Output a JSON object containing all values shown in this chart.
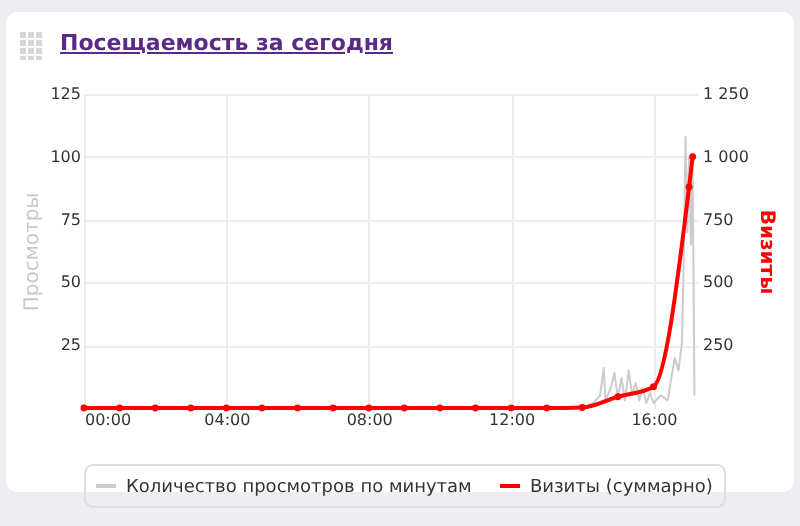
{
  "chart_data": {
    "type": "line",
    "title": "Посещаемость за сегодня",
    "ylabel": "Просмотры",
    "y2label": "Визиты",
    "xlim": [
      0,
      17.25
    ],
    "xticks": [
      {
        "value": 0,
        "label": "00:00"
      },
      {
        "value": 4,
        "label": "04:00"
      },
      {
        "value": 8,
        "label": "08:00"
      },
      {
        "value": 12,
        "label": "12:00"
      },
      {
        "value": 16,
        "label": "16:00"
      }
    ],
    "ylim": [
      0,
      125
    ],
    "yticks": [
      25,
      50,
      75,
      100,
      125
    ],
    "y2lim": [
      0,
      1250
    ],
    "y2ticks": [
      250,
      500,
      750,
      {
        "value": 1000,
        "label": "1 000"
      },
      {
        "value": 1250,
        "label": "1 250"
      }
    ],
    "grid": true,
    "legend": "bottom",
    "series": [
      {
        "name": "Количество просмотров по минутам",
        "color": "#cccccc",
        "x": [
          14.0,
          14.3,
          14.5,
          14.6,
          14.65,
          14.8,
          14.9,
          15.0,
          15.1,
          15.2,
          15.3,
          15.4,
          15.5,
          15.6,
          15.7,
          15.8,
          15.9,
          16.0,
          16.2,
          16.4,
          16.5,
          16.6,
          16.7,
          16.8,
          16.85,
          16.9,
          16.95,
          17.0,
          17.05,
          17.1,
          17.15
        ],
        "values": [
          0,
          2,
          5,
          16,
          3,
          8,
          14,
          4,
          12,
          3,
          15,
          5,
          10,
          3,
          8,
          2,
          6,
          2,
          5,
          3,
          12,
          20,
          15,
          26,
          60,
          108,
          70,
          100,
          65,
          95,
          5
        ]
      },
      {
        "name": "Визиты (суммарно)",
        "color": "#ff0000",
        "axis": "y2",
        "marker": "circle",
        "x": [
          0,
          1,
          2,
          3,
          4,
          5,
          6,
          7,
          8,
          9,
          10,
          11,
          12,
          13,
          14,
          15,
          16,
          17,
          17.1
        ],
        "values": [
          0,
          0,
          0,
          0,
          0,
          0,
          0,
          0,
          0,
          0,
          0,
          0,
          0,
          0,
          2,
          45,
          85,
          880,
          1000
        ]
      }
    ]
  }
}
